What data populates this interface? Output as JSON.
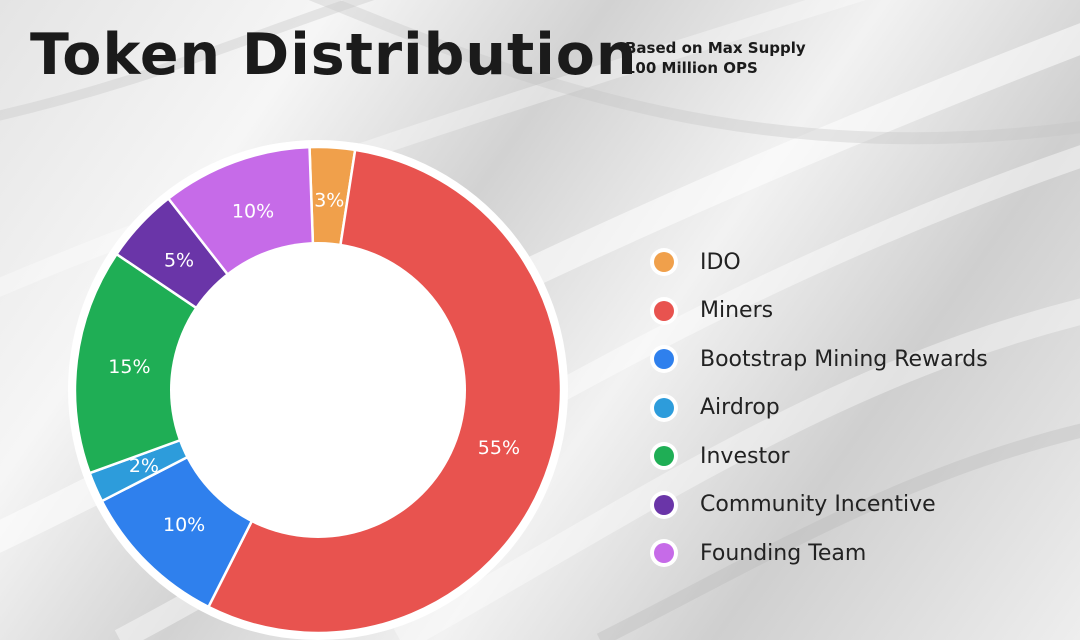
{
  "header": {
    "title": "Token Distribution",
    "subtitle_line1": "Based on Max Supply",
    "subtitle_line2": "100 Million OPS"
  },
  "chart_data": {
    "type": "pie",
    "title": "Token Distribution",
    "donut": true,
    "start_angle_deg": -2,
    "legend_position": "right",
    "slices": [
      {
        "label": "IDO",
        "value": 3,
        "display": "3%",
        "color": "#f0a04b"
      },
      {
        "label": "Miners",
        "value": 55,
        "display": "55%",
        "color": "#e8534f"
      },
      {
        "label": "Bootstrap Mining Rewards",
        "value": 10,
        "display": "10%",
        "color": "#2f80ed"
      },
      {
        "label": "Airdrop",
        "value": 2,
        "display": "2%",
        "color": "#2d9cdb"
      },
      {
        "label": "Investor",
        "value": 15,
        "display": "15%",
        "color": "#1fae55"
      },
      {
        "label": "Community Incentive",
        "value": 5,
        "display": "5%",
        "color": "#6a35a8"
      },
      {
        "label": "Founding Team",
        "value": 10,
        "display": "10%",
        "color": "#c66be8"
      }
    ]
  }
}
